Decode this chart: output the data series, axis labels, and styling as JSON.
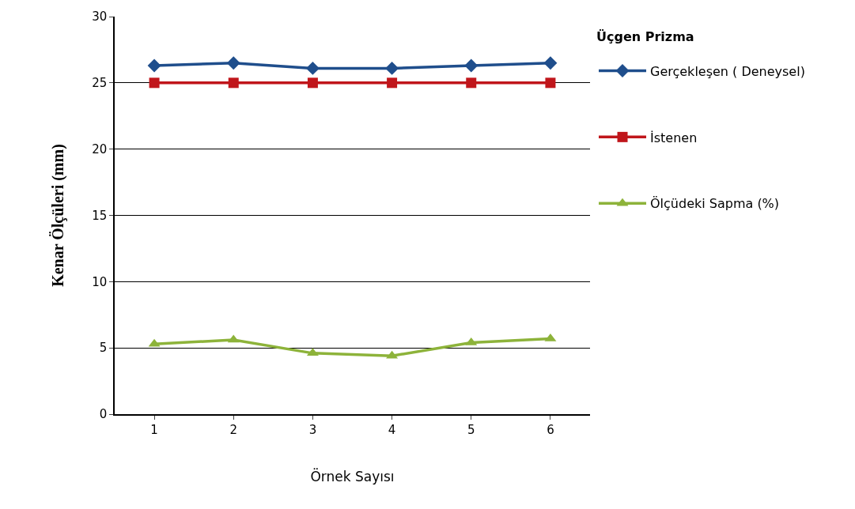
{
  "chart_data": {
    "type": "line",
    "xlabel": "Örnek Sayısı",
    "ylabel": "Kenar Ölçüleri (mm)",
    "legend_title": "Üçgen Prizma",
    "categories": [
      "1",
      "2",
      "3",
      "4",
      "5",
      "6"
    ],
    "series": [
      {
        "name": "Gerçekleşen ( Deneysel)",
        "color": "#1f4e8c",
        "marker": "diamond",
        "values": [
          26.3,
          26.5,
          26.1,
          26.1,
          26.3,
          26.5
        ]
      },
      {
        "name": "İstenen",
        "color": "#c0161b",
        "marker": "square",
        "values": [
          25,
          25,
          25,
          25,
          25,
          25
        ]
      },
      {
        "name": "Ölçüdeki Sapma (%)",
        "color": "#8db33a",
        "marker": "triangle",
        "values": [
          5.3,
          5.6,
          4.6,
          4.4,
          5.4,
          5.7
        ]
      }
    ],
    "ylim": [
      0,
      30
    ],
    "yticks": [
      0,
      5,
      10,
      15,
      20,
      25,
      30
    ],
    "grid": "y",
    "legend": "right"
  }
}
